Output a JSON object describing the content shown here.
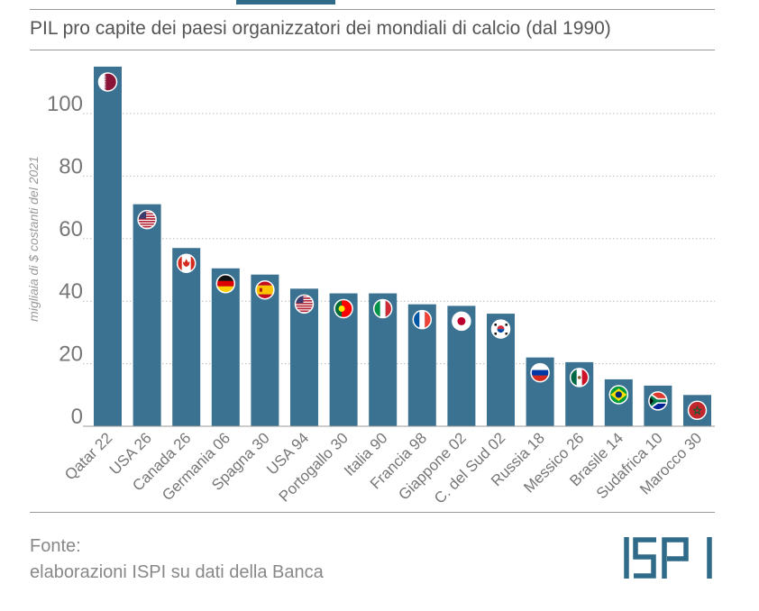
{
  "header": {
    "title": "PIL pro capite dei paesi organizzatori dei mondiali di calcio (dal 1990)"
  },
  "footer": {
    "source_label": "Fonte:",
    "source_text": "elaborazioni ISPI su dati della Banca",
    "logo_text": "ISPI"
  },
  "colors": {
    "bar": "#3b7291",
    "grid": "#bbbbbb",
    "logo": "#2f6a88"
  },
  "chart_data": {
    "type": "bar",
    "title": "PIL pro capite dei paesi organizzatori dei mondiali di calcio (dal 1990)",
    "xlabel": "",
    "ylabel": "migliaia di $ costanti del 2021",
    "ylim": [
      0,
      120
    ],
    "yticks": [
      0,
      20,
      40,
      60,
      80,
      100
    ],
    "grid": true,
    "categories": [
      "Qatar 22",
      "USA 26",
      "Canada 26",
      "Germania 06",
      "Spagna 30",
      "USA 94",
      "Portogallo 30",
      "Italia 90",
      "Francia 98",
      "Giappone 02",
      "C. del Sud 02",
      "Russia 18",
      "Messico 26",
      "Brasile 14",
      "Sudafrica 10",
      "Marocco 30"
    ],
    "values": [
      115,
      71,
      57,
      50.5,
      48.5,
      44,
      42.5,
      42.5,
      39,
      38.5,
      36,
      22,
      20.5,
      15,
      13,
      10
    ],
    "flags": [
      "qatar-flag",
      "usa-flag",
      "canada-flag",
      "germany-flag",
      "spain-flag",
      "usa-flag",
      "portugal-flag",
      "italy-flag",
      "france-flag",
      "japan-flag",
      "south-korea-flag",
      "russia-flag",
      "mexico-flag",
      "brazil-flag",
      "south-africa-flag",
      "morocco-flag"
    ]
  }
}
